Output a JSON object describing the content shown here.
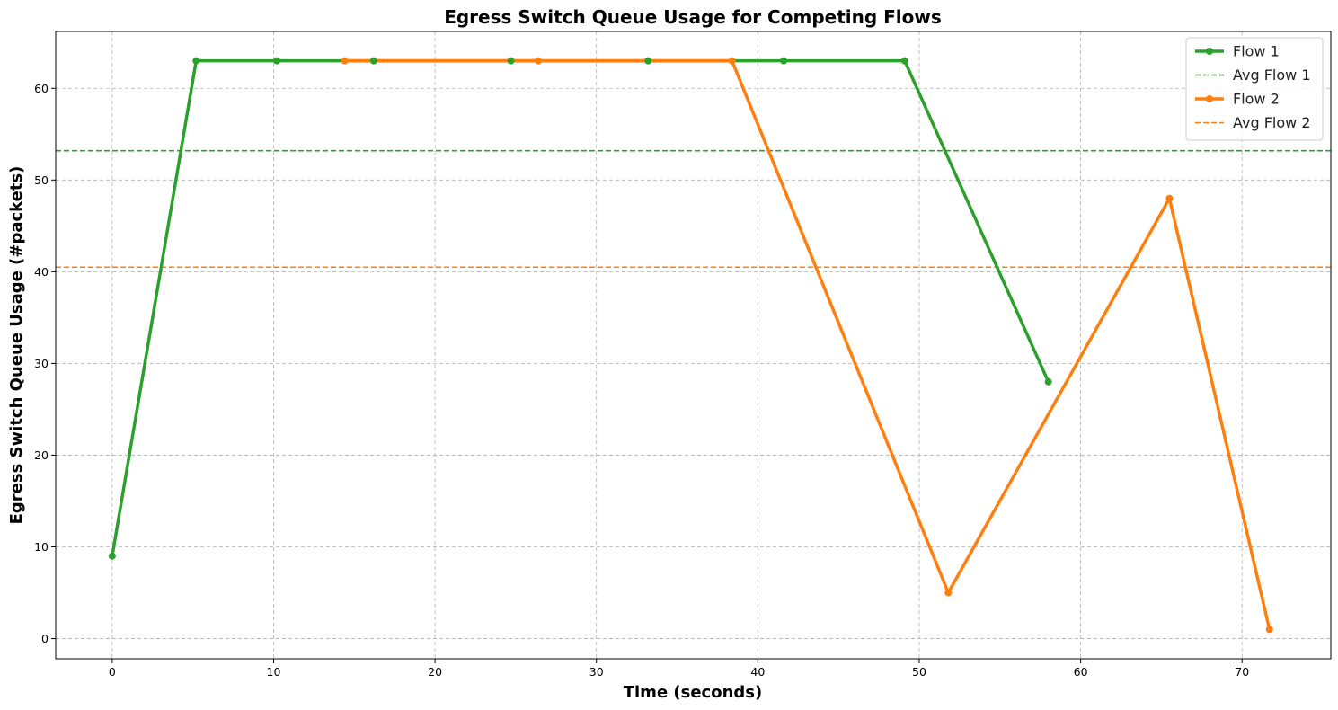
{
  "chart_data": {
    "type": "line",
    "title": "Egress Switch Queue Usage for Competing Flows",
    "xlabel": "Time (seconds)",
    "ylabel": "Egress Switch Queue Usage (#packets)",
    "xlim": [
      -3.5,
      75.5
    ],
    "ylim": [
      -2.2,
      66.2
    ],
    "xticks": [
      0,
      10,
      20,
      30,
      40,
      50,
      60,
      70
    ],
    "yticks": [
      0,
      10,
      20,
      30,
      40,
      50,
      60
    ],
    "grid": true,
    "legend_position": "top-right",
    "series": [
      {
        "name": "Flow 1",
        "color": "#2ca02c",
        "x": [
          0,
          5.2,
          10.2,
          16.2,
          24.7,
          33.2,
          41.6,
          49.1,
          58.0
        ],
        "y": [
          9,
          63,
          63,
          63,
          63,
          63,
          63,
          63,
          28
        ]
      },
      {
        "name": "Flow 2",
        "color": "#ff7f0e",
        "x": [
          14.4,
          26.4,
          38.4,
          51.8,
          65.5,
          71.7
        ],
        "y": [
          63,
          63,
          63,
          5,
          48,
          1
        ]
      }
    ],
    "averages": [
      {
        "name": "Avg Flow 1",
        "color": "#2ca02c",
        "value": 53.2
      },
      {
        "name": "Avg Flow 2",
        "color": "#ff7f0e",
        "value": 40.5
      }
    ],
    "legend": [
      {
        "label": "Flow 1",
        "style": "line-marker",
        "color": "#2ca02c"
      },
      {
        "label": "Avg Flow 1",
        "style": "dashed",
        "color": "#2ca02c"
      },
      {
        "label": "Flow 2",
        "style": "line-marker",
        "color": "#ff7f0e"
      },
      {
        "label": "Avg Flow 2",
        "style": "dashed",
        "color": "#ff7f0e"
      }
    ]
  }
}
